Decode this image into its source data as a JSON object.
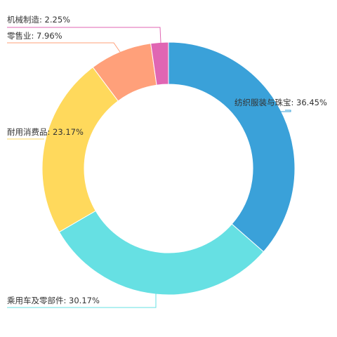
{
  "chart_data": {
    "type": "pie",
    "donut": true,
    "legend": "none",
    "slices": [
      {
        "name": "纺织服装与珠宝",
        "value": 36.45,
        "label": "纺织服装与珠宝: 36.45%",
        "color": "#3aa1d9"
      },
      {
        "name": "乘用车及零部件",
        "value": 30.17,
        "label": "乘用车及零部件: 30.17%",
        "color": "#66e0e3"
      },
      {
        "name": "耐用消费品",
        "value": 23.17,
        "label": "耐用消费品: 23.17%",
        "color": "#ffd95c"
      },
      {
        "name": "零售业",
        "value": 7.96,
        "label": "零售业: 7.96%",
        "color": "#ffa07a"
      },
      {
        "name": "机械制造",
        "value": 2.25,
        "label": "机械制造: 2.25%",
        "color": "#e066b3"
      }
    ]
  }
}
